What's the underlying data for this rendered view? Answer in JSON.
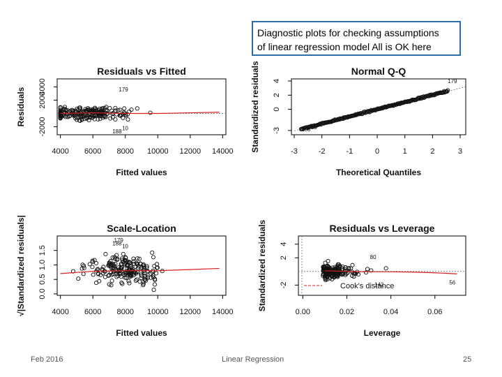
{
  "callout": {
    "line1": "Diagnostic plots for checking assumptions",
    "line2": "of linear regression model  All is OK here",
    "border_color": "#2e6ca6"
  },
  "footer": {
    "date": "Feb 2016",
    "title": "Linear Regression",
    "page": "25"
  },
  "chart_data": [
    {
      "type": "scatter",
      "title": "Residuals vs Fitted",
      "xlabel": "Fitted values",
      "ylabel": "Residuals",
      "xlim": [
        3800,
        14200
      ],
      "ylim": [
        -3200,
        5200
      ],
      "xticks": [
        4000,
        6000,
        8000,
        10000,
        12000,
        14000
      ],
      "yticks": [
        -2000,
        2000,
        4000
      ],
      "yticklabels": [
        "-2000",
        "2000",
        "4000"
      ],
      "reference_line": {
        "y": 0,
        "style": "dotted"
      },
      "smooth_line": {
        "x": [
          4000,
          6000,
          8000,
          10000,
          12000,
          13800
        ],
        "y": [
          0,
          100,
          0,
          0,
          100,
          200
        ],
        "color": "#d62020"
      },
      "point_labels": [
        {
          "text": "179",
          "x": 7600,
          "y": 3300
        },
        {
          "text": "188",
          "x": 7200,
          "y": -3000
        },
        {
          "text": "10",
          "x": 7800,
          "y": -2500
        }
      ]
    },
    {
      "type": "scatter",
      "title": "Normal Q-Q",
      "xlabel": "Theoretical Quantiles",
      "ylabel": "Standardized residuals",
      "xlim": [
        -3.1,
        3.2
      ],
      "ylim": [
        -3.6,
        4.3
      ],
      "xticks": [
        -3,
        -2,
        -1,
        0,
        1,
        2,
        3
      ],
      "yticks": [
        -3,
        0,
        2,
        4
      ],
      "yticklabels": [
        "-3",
        "0",
        "2",
        "4"
      ],
      "reference_line": {
        "x": [
          -3,
          3.2
        ],
        "y": [
          -3.05,
          3.2
        ],
        "style": "dotted"
      },
      "point_labels": [
        {
          "text": "179",
          "x": 2.55,
          "y": 3.7
        },
        {
          "text": "188",
          "x": -2.75,
          "y": -3.1
        },
        {
          "text": "10",
          "x": -2.4,
          "y": -2.8
        }
      ]
    },
    {
      "type": "scatter",
      "title": "Scale-Location",
      "xlabel": "Fitted values",
      "ylabel": "√|Standardized residuals|",
      "xlim": [
        3800,
        14200
      ],
      "ylim": [
        -0.05,
        2.0
      ],
      "xticks": [
        4000,
        6000,
        8000,
        10000,
        12000,
        14000
      ],
      "yticks": [
        0.0,
        0.5,
        1.0,
        1.5
      ],
      "yticklabels": [
        "0.0",
        "0.5",
        "1.0",
        "1.5"
      ],
      "smooth_line": {
        "x": [
          4000,
          6000,
          8000,
          10000,
          12000,
          13800
        ],
        "y": [
          0.7,
          0.78,
          0.8,
          0.8,
          0.84,
          0.88
        ],
        "color": "#d62020"
      },
      "point_labels": [
        {
          "text": "179",
          "x": 7300,
          "y": 1.78
        },
        {
          "text": "188",
          "x": 7200,
          "y": 1.68
        },
        {
          "text": "10",
          "x": 7800,
          "y": 1.58
        }
      ]
    },
    {
      "type": "scatter",
      "title": "Residuals vs Leverage",
      "xlabel": "Leverage",
      "ylabel": "Standardized residuals",
      "xlim": [
        -0.002,
        0.074
      ],
      "ylim": [
        -3.5,
        5.2
      ],
      "xticks": [
        0.0,
        0.02,
        0.04,
        0.06
      ],
      "xticklabels": [
        "0.00",
        "0.02",
        "0.04",
        "0.06"
      ],
      "yticks": [
        -2,
        2,
        4
      ],
      "yticklabels": [
        "-2",
        "2",
        "4"
      ],
      "reference_line": {
        "y": 0,
        "style": "dotted"
      },
      "smooth_line": {
        "x": [
          0.01,
          0.02,
          0.03,
          0.04,
          0.05,
          0.06,
          0.07
        ],
        "y": [
          0.1,
          0.0,
          -0.05,
          -0.05,
          -0.1,
          -0.2,
          -0.35
        ],
        "color": "#d62020"
      },
      "legend": {
        "text": "Cook's distance",
        "style": "dashed-red",
        "placement": "bottom-left"
      },
      "point_labels": [
        {
          "text": "80",
          "x": 0.0305,
          "y": 1.8
        },
        {
          "text": "142",
          "x": 0.0325,
          "y": -2.2
        },
        {
          "text": "56",
          "x": 0.0665,
          "y": -1.9
        }
      ]
    }
  ]
}
